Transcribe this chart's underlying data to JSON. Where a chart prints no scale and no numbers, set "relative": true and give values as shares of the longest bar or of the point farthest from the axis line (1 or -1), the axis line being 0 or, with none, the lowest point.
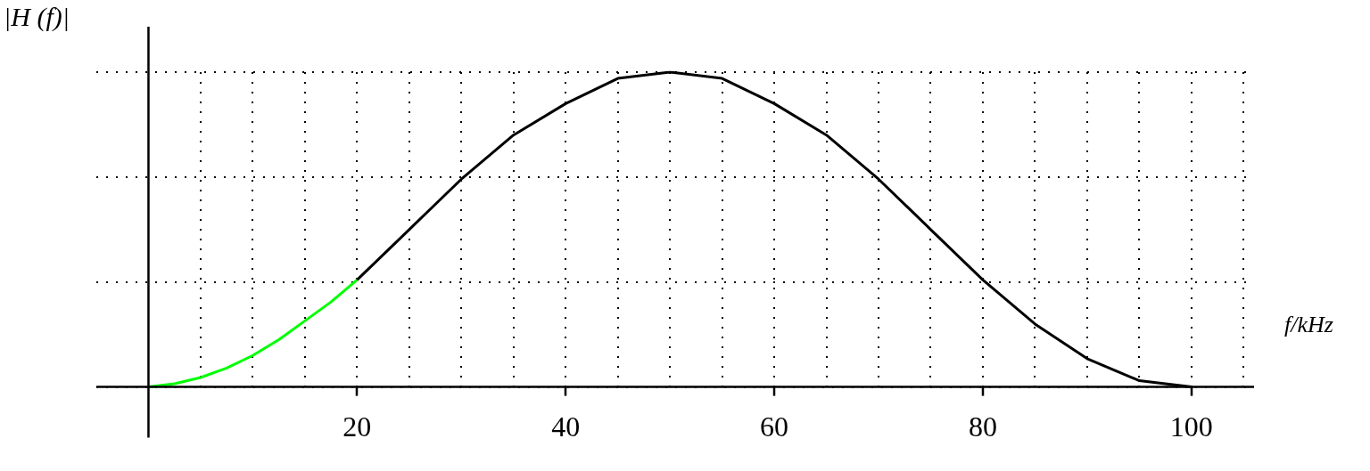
{
  "chart_data": {
    "type": "line",
    "relative": true,
    "xlabel": "f/kHz",
    "ylabel": "|H (f)|",
    "xlim": [
      -5,
      106
    ],
    "xticks": [
      {
        "value": 5,
        "label": null
      },
      {
        "value": 10,
        "label": null
      },
      {
        "value": 15,
        "label": null
      },
      20,
      {
        "value": 25,
        "label": null
      },
      {
        "value": 30,
        "label": null
      },
      {
        "value": 35,
        "label": null
      },
      40,
      {
        "value": 45,
        "label": null
      },
      {
        "value": 50,
        "label": null
      },
      {
        "value": 55,
        "label": null
      },
      60,
      {
        "value": 65,
        "label": null
      },
      {
        "value": 70,
        "label": null
      },
      {
        "value": 75,
        "label": null
      },
      80,
      {
        "value": 85,
        "label": null
      },
      {
        "value": 90,
        "label": null
      },
      {
        "value": 95,
        "label": null
      },
      100,
      {
        "value": 105,
        "label": null
      }
    ],
    "series": [
      {
        "color": "#00ff00",
        "x": [
          0,
          2.5,
          5,
          7.5,
          10,
          12.5,
          15,
          17.5,
          20
        ],
        "values": [
          0,
          0.01,
          0.03,
          0.06,
          0.1,
          0.15,
          0.21,
          0.27,
          0.34
        ]
      },
      {
        "color": "#000000",
        "x": [
          20,
          25,
          30,
          35,
          40,
          45,
          50,
          55,
          60,
          65,
          70,
          75,
          80,
          85,
          90,
          95,
          100
        ],
        "values": [
          0.34,
          0.5,
          0.66,
          0.8,
          0.9,
          0.98,
          1,
          0.98,
          0.9,
          0.8,
          0.66,
          0.5,
          0.34,
          0.2,
          0.09,
          0.02,
          0
        ]
      }
    ],
    "grid": true,
    "line_style": "solid",
    "marker": "none",
    "legend": false
  }
}
